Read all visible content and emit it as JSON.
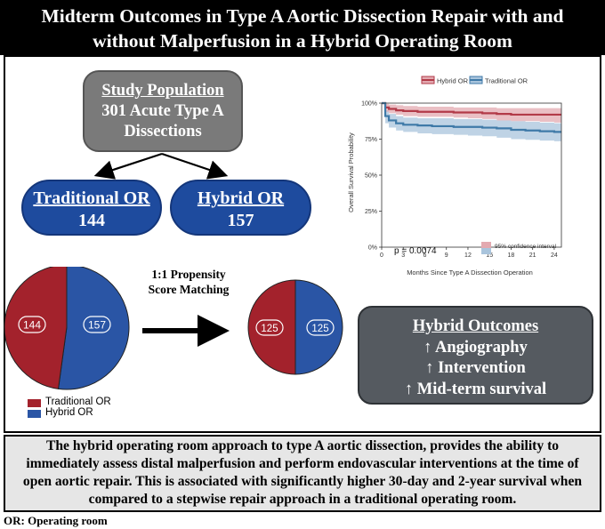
{
  "title": {
    "line1": "Midterm Outcomes in Type A Aortic Dissection Repair with and",
    "line2": "without Malperfusion in a Hybrid Operating Room"
  },
  "study_population": {
    "heading": "Study Population",
    "line1": "301 Acute Type A",
    "line2": "Dissections"
  },
  "groups": {
    "traditional": {
      "label": "Traditional OR",
      "count": "144"
    },
    "hybrid": {
      "label": "Hybrid OR",
      "count": "157"
    }
  },
  "matching_label": {
    "line1": "1:1 Propensity",
    "line2": "Score Matching"
  },
  "pie_before": {
    "traditional": 144,
    "hybrid": 157,
    "traditional_label": "144",
    "hybrid_label": "157"
  },
  "pie_after": {
    "traditional": 125,
    "hybrid": 125,
    "traditional_label": "125",
    "hybrid_label": "125"
  },
  "pie_legend": [
    "Traditional OR",
    "Hybrid OR"
  ],
  "colors": {
    "traditional": "#a3222c",
    "hybrid": "#2a55a5",
    "pill": "#1e4b9e",
    "km_hybrid": "#b23a48",
    "km_traditional": "#3f7aa8"
  },
  "outcomes": {
    "heading": "Hybrid Outcomes",
    "items": [
      "↑ Angiography",
      "↑ Intervention",
      "↑ Mid-term survival"
    ]
  },
  "summary": "The hybrid operating room approach to type A aortic dissection, provides the ability to immediately assess distal malperfusion and perform endovascular interventions at the time of open aortic repair. This is associated with significantly higher 30-day and 2-year survival when compared to a stepwise repair approach in a traditional operating room.",
  "footnote": "OR: Operating room",
  "chart_data": {
    "type": "line",
    "title": "",
    "xlabel": "Months Since Type A Dissection Operation",
    "ylabel": "Overall Survival Probability",
    "x_ticks": [
      0,
      3,
      6,
      9,
      12,
      15,
      18,
      21,
      24
    ],
    "y_ticks": [
      "0%",
      "25%",
      "50%",
      "75%",
      "100%"
    ],
    "xlim": [
      0,
      25
    ],
    "ylim": [
      0,
      100
    ],
    "legend": [
      "Hybrid OR",
      "Traditional OR"
    ],
    "legend_position": "top",
    "p_value": "p = 0.0074",
    "ci_label": "95% confidence interval",
    "series": [
      {
        "name": "Hybrid OR",
        "x": [
          0,
          0.5,
          1,
          2,
          3,
          5,
          7,
          10,
          12,
          14,
          16,
          18,
          20,
          22,
          24,
          25
        ],
        "y": [
          100,
          97,
          96,
          95,
          94.5,
          94,
          94,
          93.5,
          93.5,
          93,
          92.5,
          92,
          92,
          92,
          92,
          92
        ],
        "lower": [
          100,
          94,
          93,
          92,
          91,
          90.5,
          90.5,
          90,
          89.5,
          89,
          88,
          87.5,
          87.5,
          87,
          86.5,
          86.5
        ],
        "upper": [
          100,
          99.5,
          99,
          98.5,
          98,
          97.5,
          97.5,
          97,
          97,
          97,
          96.5,
          96.5,
          96.5,
          96.5,
          96.5,
          96.5
        ]
      },
      {
        "name": "Traditional OR",
        "x": [
          0,
          0.5,
          1,
          2,
          3,
          5,
          7,
          10,
          12,
          14,
          16,
          18,
          20,
          22,
          24,
          25
        ],
        "y": [
          100,
          91,
          88,
          86,
          85,
          84.5,
          84,
          83.5,
          83.5,
          83,
          82.5,
          81.5,
          81,
          80.5,
          80,
          80
        ],
        "lower": [
          100,
          86,
          83,
          81,
          80,
          79,
          78.5,
          78,
          77.5,
          77,
          76,
          75,
          74.5,
          74,
          73.5,
          73.5
        ],
        "upper": [
          100,
          95,
          92.5,
          91,
          90,
          89.5,
          89.5,
          89,
          89,
          88.5,
          88,
          87.5,
          87,
          86.5,
          86,
          86
        ]
      }
    ]
  }
}
